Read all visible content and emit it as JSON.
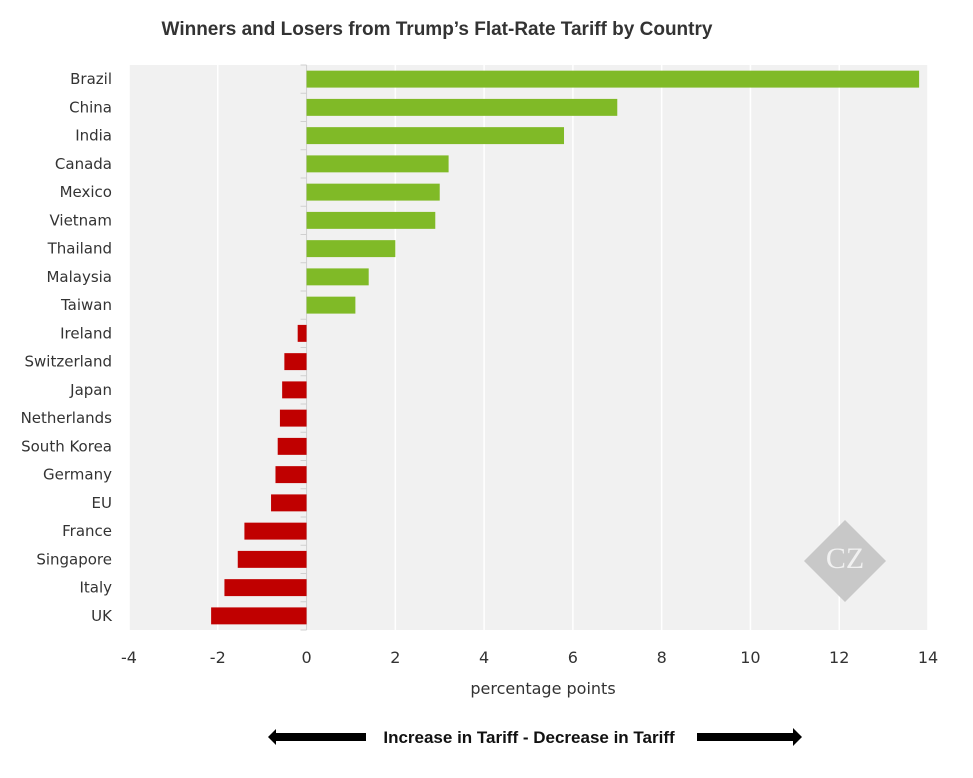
{
  "chart_data": {
    "type": "bar",
    "orientation": "horizontal",
    "title": "Winners and Losers from Trump’s Flat-Rate Tariff by Country",
    "xlabel": "percentage points",
    "ylabel": "",
    "xlim": [
      -4,
      14
    ],
    "xticks": [
      "-4",
      "-2",
      "0",
      "2",
      "4",
      "6",
      "8",
      "10",
      "12",
      "14"
    ],
    "grid": true,
    "categories": [
      "Brazil",
      "China",
      "India",
      "Canada",
      "Mexico",
      "Vietnam",
      "Thailand",
      "Malaysia",
      "Taiwan",
      "Ireland",
      "Switzerland",
      "Japan",
      "Netherlands",
      "South Korea",
      "Germany",
      "EU",
      "France",
      "Singapore",
      "Italy",
      "UK"
    ],
    "values": [
      13.8,
      7.0,
      5.8,
      3.2,
      3.0,
      2.9,
      2.0,
      1.4,
      1.1,
      -0.2,
      -0.5,
      -0.55,
      -0.6,
      -0.65,
      -0.7,
      -0.8,
      -1.4,
      -1.55,
      -1.85,
      -2.15
    ],
    "colors": {
      "positive": "#80BA27",
      "negative": "#C00000",
      "plot_background": "#F1F1F1",
      "grid": "#FFFFFF"
    },
    "annotation": "Increase in Tariff - Decrease in Tariff",
    "watermark": "CZ"
  }
}
